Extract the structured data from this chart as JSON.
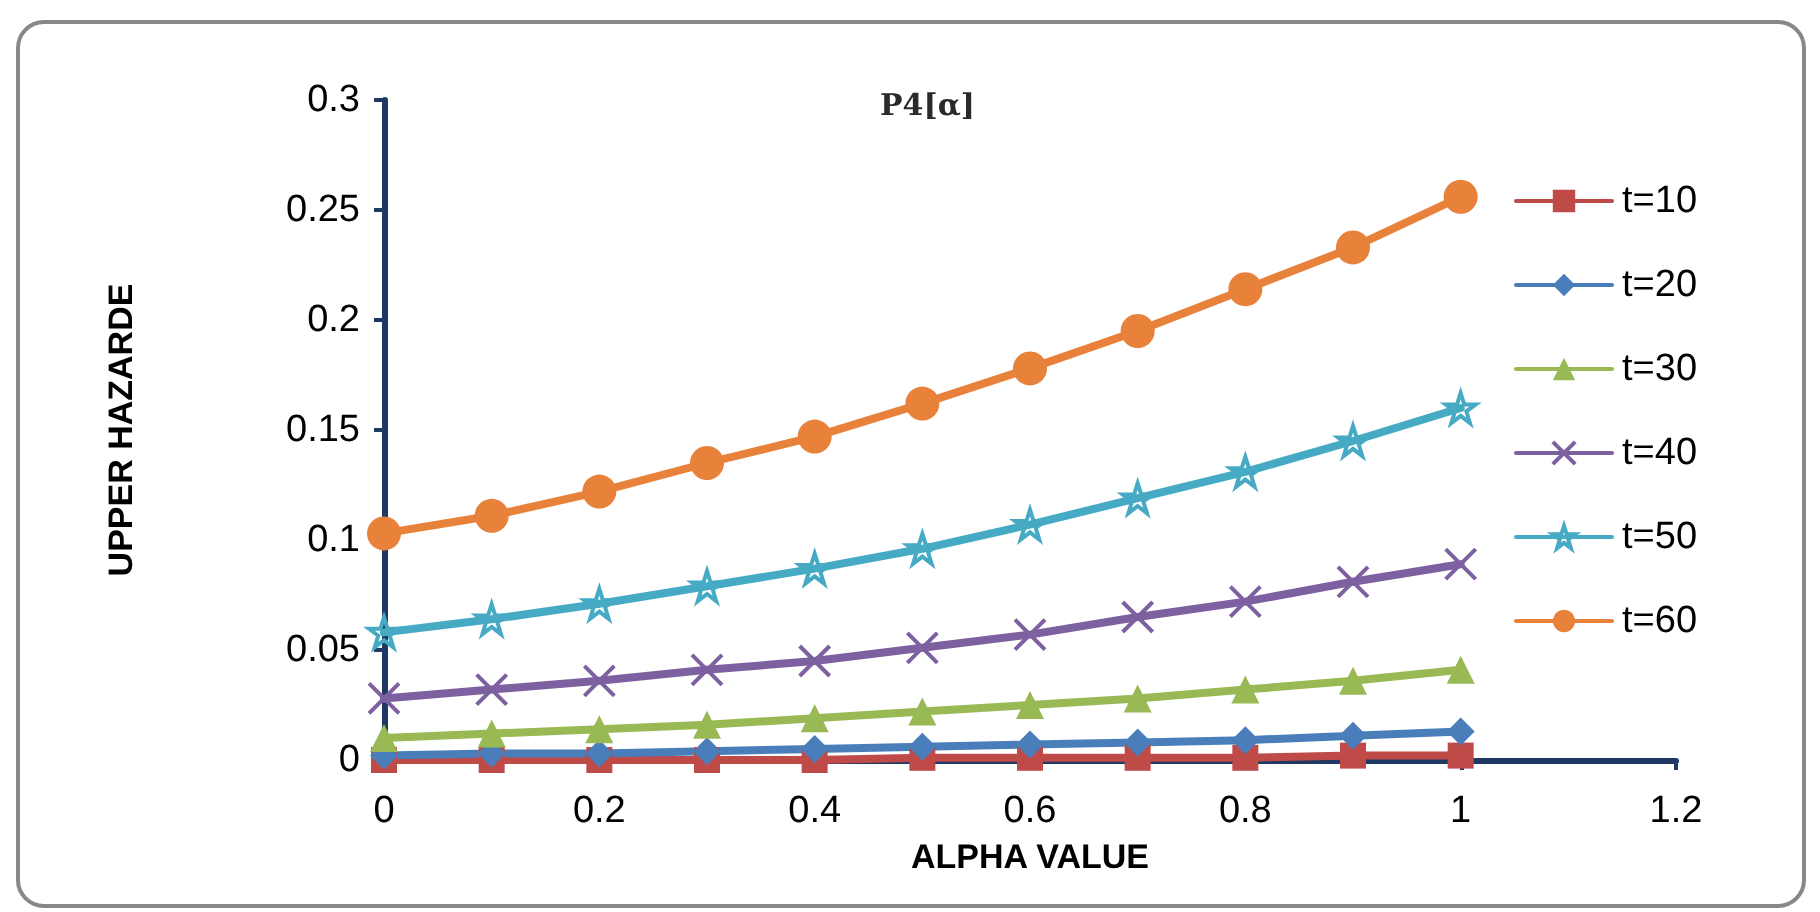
{
  "chart_data": {
    "type": "line",
    "title": "P4[α]",
    "xlabel": "ALPHA VALUE",
    "ylabel": "UPPER HAZARDE",
    "x": [
      0,
      0.1,
      0.2,
      0.3,
      0.4,
      0.5,
      0.6,
      0.7,
      0.8,
      0.9,
      1
    ],
    "xlim": [
      0,
      1.2
    ],
    "xticks": [
      0,
      0.2,
      0.4,
      0.6,
      0.8,
      1,
      1.2
    ],
    "ylim": [
      0,
      0.3
    ],
    "yticks": [
      0,
      0.05,
      0.1,
      0.15,
      0.2,
      0.25,
      0.3
    ],
    "grid": false,
    "legend": "right",
    "line_style": "solid",
    "series": [
      {
        "name": "t=10",
        "color": "#be4b48",
        "marker": "square",
        "values": [
          0,
          0,
          0,
          0,
          0,
          0.001,
          0.001,
          0.001,
          0.001,
          0.002,
          0.002
        ]
      },
      {
        "name": "t=20",
        "color": "#4a7ebb",
        "marker": "diamond",
        "values": [
          0.002,
          0.003,
          0.003,
          0.004,
          0.005,
          0.006,
          0.007,
          0.008,
          0.009,
          0.011,
          0.013
        ]
      },
      {
        "name": "t=30",
        "color": "#98b954",
        "marker": "triangle",
        "values": [
          0.01,
          0.012,
          0.014,
          0.016,
          0.019,
          0.022,
          0.025,
          0.028,
          0.032,
          0.036,
          0.041
        ]
      },
      {
        "name": "t=40",
        "color": "#7d60a0",
        "marker": "cross",
        "values": [
          0.028,
          0.032,
          0.036,
          0.041,
          0.045,
          0.051,
          0.057,
          0.065,
          0.072,
          0.081,
          0.089
        ]
      },
      {
        "name": "t=50",
        "color": "#46aac5",
        "marker": "star",
        "values": [
          0.058,
          0.064,
          0.071,
          0.079,
          0.087,
          0.096,
          0.107,
          0.119,
          0.131,
          0.145,
          0.16
        ]
      },
      {
        "name": "t=60",
        "color": "#e8813a",
        "marker": "circle",
        "values": [
          0.103,
          0.111,
          0.122,
          0.135,
          0.147,
          0.162,
          0.178,
          0.195,
          0.214,
          0.233,
          0.256
        ]
      }
    ]
  }
}
